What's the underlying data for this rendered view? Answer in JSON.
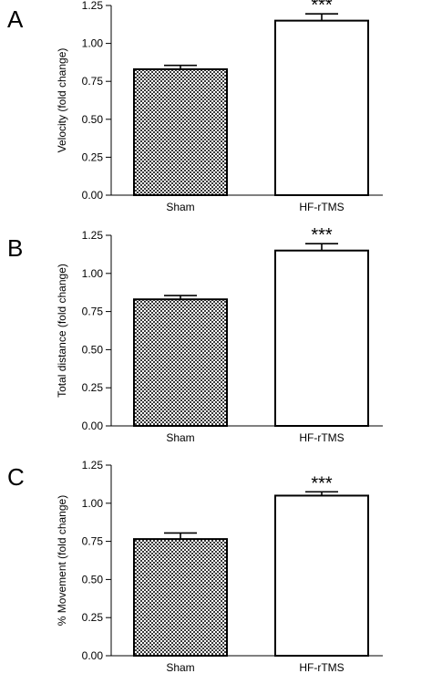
{
  "chart_data": [
    {
      "type": "bar",
      "panel_label": "A",
      "ylabel": "Velocity (fold change)",
      "categories": [
        "Sham",
        "HF-rTMS"
      ],
      "values": [
        0.83,
        1.15
      ],
      "errors": [
        0.025,
        0.045
      ],
      "annotations": [
        "",
        "***"
      ],
      "ylim": [
        0,
        1.25
      ],
      "yticks": [
        "0.00",
        "0.25",
        "0.50",
        "0.75",
        "1.00",
        "1.25"
      ],
      "bar_fills": [
        "checker",
        "white"
      ]
    },
    {
      "type": "bar",
      "panel_label": "B",
      "ylabel": "Total distance (fold change)",
      "categories": [
        "Sham",
        "HF-rTMS"
      ],
      "values": [
        0.83,
        1.15
      ],
      "errors": [
        0.025,
        0.045
      ],
      "annotations": [
        "",
        "***"
      ],
      "ylim": [
        0,
        1.25
      ],
      "yticks": [
        "0.00",
        "0.25",
        "0.50",
        "0.75",
        "1.00",
        "1.25"
      ],
      "bar_fills": [
        "checker",
        "white"
      ]
    },
    {
      "type": "bar",
      "panel_label": "C",
      "ylabel": "% Movement (fold change)",
      "categories": [
        "Sham",
        "HF-rTMS"
      ],
      "values": [
        0.765,
        1.05
      ],
      "errors": [
        0.04,
        0.025
      ],
      "annotations": [
        "",
        "***"
      ],
      "ylim": [
        0,
        1.25
      ],
      "yticks": [
        "0.00",
        "0.25",
        "0.50",
        "0.75",
        "1.00",
        "1.25"
      ],
      "bar_fills": [
        "checker",
        "white"
      ]
    }
  ]
}
